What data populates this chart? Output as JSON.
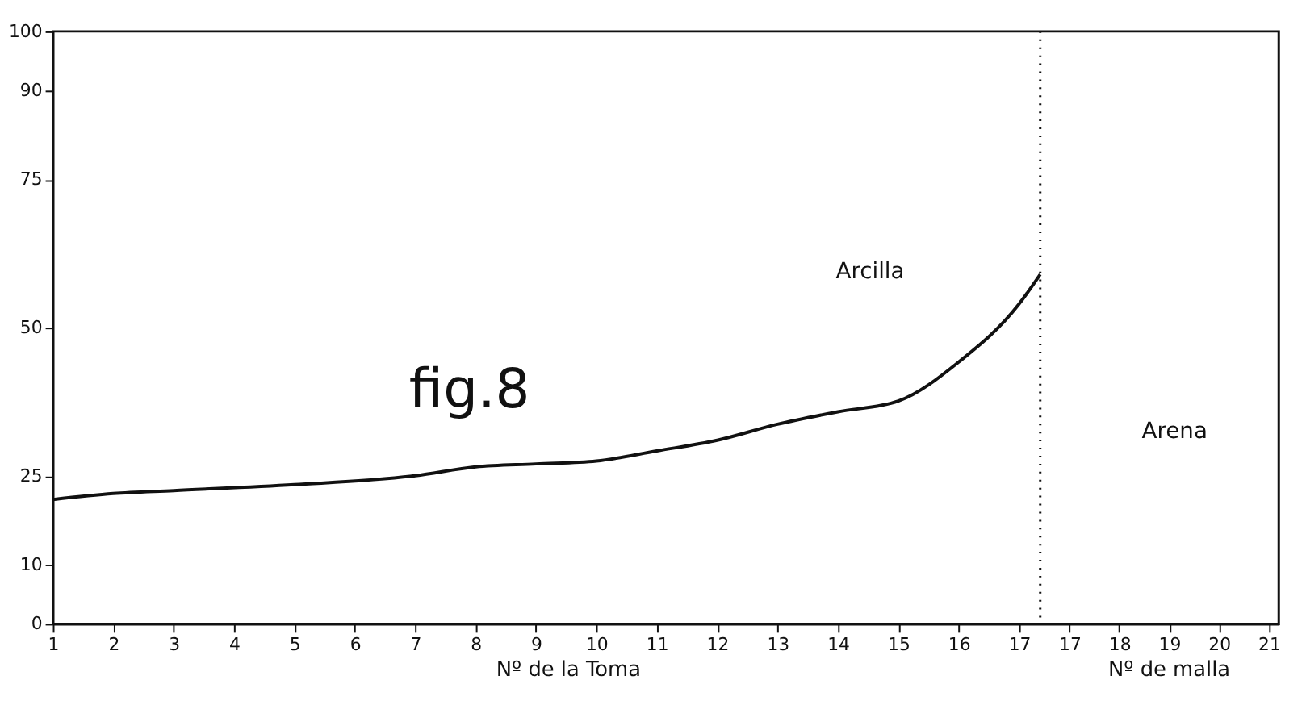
{
  "chart_data": {
    "type": "line",
    "xlabel": "Nº de la Toma",
    "x2label": "Nº de malla",
    "x": [
      1,
      2,
      3,
      5,
      7,
      8,
      9,
      10,
      11,
      12,
      13,
      14,
      15,
      16,
      17,
      17.35
    ],
    "series": [
      {
        "color": "#111111",
        "values": [
          21,
          22,
          22.5,
          23.5,
          25,
          26.5,
          27,
          27.5,
          29.2,
          31,
          33.7,
          35.8,
          37.6,
          44.2,
          54,
          59
        ]
      }
    ],
    "xlim": [
      1,
      21.3
    ],
    "xticks": [
      1,
      2,
      3,
      4,
      5,
      6,
      7,
      8,
      9,
      10,
      11,
      12,
      13,
      14,
      15,
      16,
      17
    ],
    "x2lim": [
      -3.4,
      21.2
    ],
    "x2ticks": [
      17,
      18,
      19,
      20,
      21
    ],
    "ylim": [
      0,
      100
    ],
    "yticks": [
      0,
      10,
      25,
      50,
      75,
      90,
      100
    ],
    "ref_lines": [
      {
        "axis": "x",
        "value": 17.35,
        "line_style": "dotted",
        "color": "#111111"
      }
    ],
    "annotations": [
      "fig.8",
      "Arcilla",
      "Arena"
    ],
    "grid": false,
    "marker": "none",
    "line_style": "solid"
  }
}
